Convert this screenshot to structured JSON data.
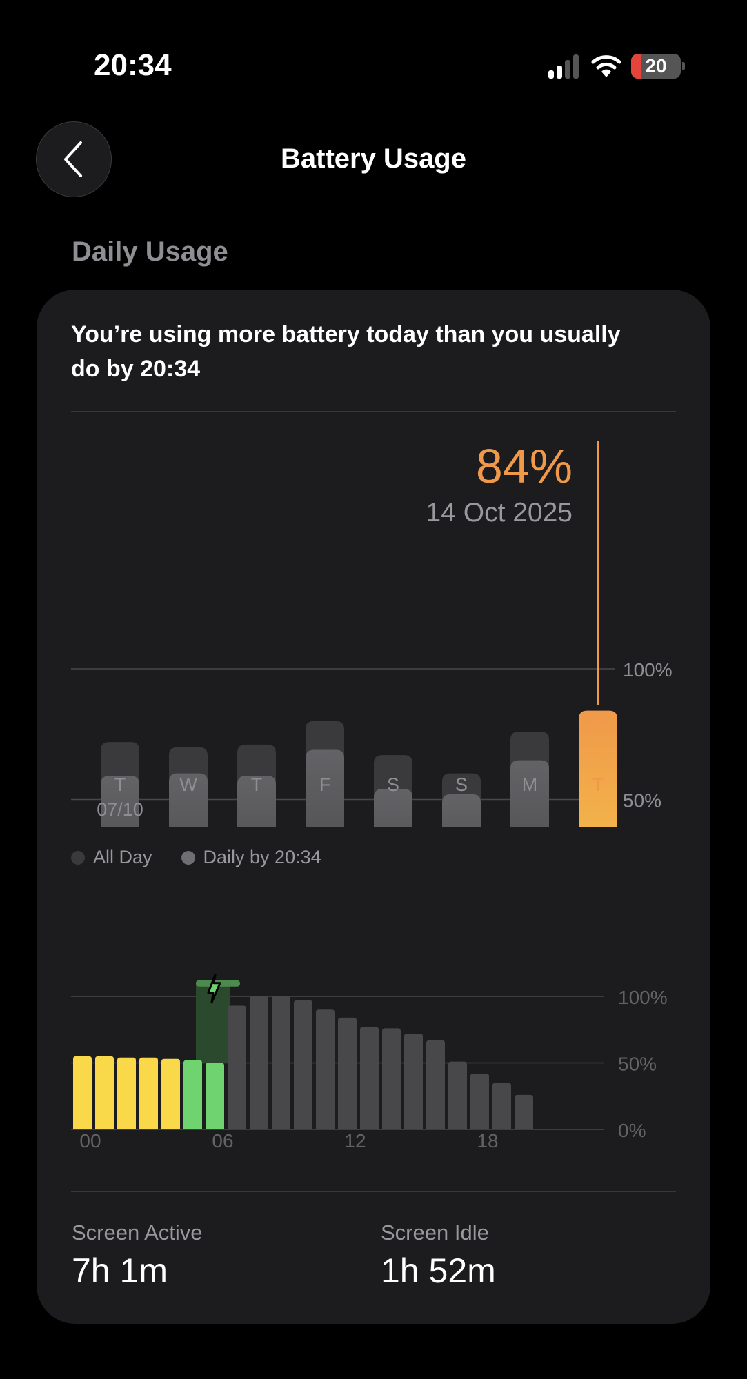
{
  "status_bar": {
    "time": "20:34",
    "battery_level": "20",
    "battery_color": "#e5443b"
  },
  "nav": {
    "back_label": "Back",
    "title": "Battery Usage"
  },
  "section_title": "Daily Usage",
  "card": {
    "headline": "You’re using more battery today than you usually do by 20:34",
    "selected_value": "84%",
    "selected_date": "14 Oct 2025",
    "legend": [
      {
        "label": "All Day",
        "color": "#3a3a3c"
      },
      {
        "label": "Daily by 20:34",
        "color": "#6e6e73"
      }
    ],
    "stats": [
      {
        "label": "Screen Active",
        "value": "7h 1m"
      },
      {
        "label": "Screen Idle",
        "value": "1h 52m"
      }
    ]
  },
  "chart_data": [
    {
      "type": "bar",
      "title": "Daily Usage",
      "categories": [
        "T",
        "W",
        "T",
        "F",
        "S",
        "S",
        "M",
        "T"
      ],
      "first_date_label": "07/10",
      "series": [
        {
          "name": "All Day",
          "values": [
            72,
            70,
            71,
            80,
            67,
            60,
            76,
            null
          ]
        },
        {
          "name": "Daily by 20:34",
          "values": [
            59,
            60,
            59,
            69,
            54,
            52,
            65,
            84
          ]
        }
      ],
      "highlight_index": 7,
      "yticks": [
        "0%",
        "50%",
        "100%"
      ],
      "ylim": [
        0,
        100
      ],
      "colors": {
        "all_day": "#3a3a3c",
        "daily": "#5a5a5e",
        "today_top": "#f0994a",
        "today_bottom": "#f5c84a"
      }
    },
    {
      "type": "bar",
      "title": "Battery Level by Hour",
      "xticks": [
        "00",
        "06",
        "12",
        "18"
      ],
      "hours": [
        0,
        1,
        2,
        3,
        4,
        5,
        6,
        7,
        8,
        9,
        10,
        11,
        12,
        13,
        14,
        15,
        16,
        17,
        18,
        19,
        20
      ],
      "values": [
        55,
        55,
        54,
        54,
        53,
        52,
        50,
        93,
        100,
        100,
        97,
        90,
        84,
        77,
        76,
        72,
        67,
        51,
        42,
        35,
        26
      ],
      "states": [
        "low",
        "low",
        "low",
        "low",
        "low",
        "charging",
        "charging",
        "normal",
        "normal",
        "normal",
        "normal",
        "normal",
        "normal",
        "normal",
        "normal",
        "normal",
        "normal",
        "normal",
        "normal",
        "normal",
        "normal"
      ],
      "charging_hour": 6,
      "yticks": [
        "0%",
        "50%",
        "100%"
      ],
      "ylim": [
        0,
        100
      ],
      "colors": {
        "low": "#f9d94a",
        "charging": "#6fd46f",
        "normal": "#48484a"
      }
    }
  ]
}
